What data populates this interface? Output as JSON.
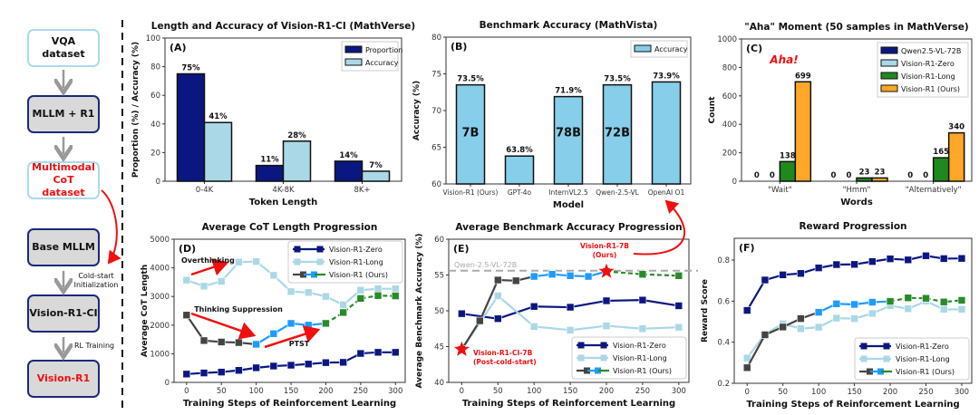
{
  "diagram": {
    "nodes": [
      "VQA dataset",
      "MLLM + R1",
      "Multimodal CoT dataset",
      "Base MLLM",
      "Vision-R1-CI",
      "Vision-R1"
    ],
    "step_cold_start": "Cold-start Initialization",
    "step_rl": "RL Training"
  },
  "chart_data": [
    {
      "id": "A",
      "type": "bar",
      "panel_label": "(A)",
      "title": "Length and Accuracy of Vision-R1-CI (MathVerse)",
      "xlabel": "Token Length",
      "ylabel": "Proportion (%) / Accuracy (%)",
      "ylim": [
        0,
        100
      ],
      "yticks": [
        0,
        20,
        40,
        60,
        80,
        100
      ],
      "categories": [
        "0-4K",
        "4K-8K",
        "8K+"
      ],
      "legend": "top-right",
      "series": [
        {
          "name": "Proportion",
          "color": "#0b1780",
          "values": [
            75,
            11,
            14
          ],
          "labels": [
            "75%",
            "11%",
            "14%"
          ]
        },
        {
          "name": "Accuracy",
          "color": "#aad8e6",
          "values": [
            41,
            28,
            7
          ],
          "labels": [
            "41%",
            "28%",
            "7%"
          ]
        }
      ]
    },
    {
      "id": "B",
      "type": "bar",
      "panel_label": "(B)",
      "title": "Benchmark Accuracy (MathVista)",
      "xlabel": "Model",
      "ylabel": "Accuracy (%)",
      "ylim": [
        60,
        80
      ],
      "yticks": [
        60,
        65,
        70,
        75,
        80
      ],
      "categories": [
        "Vision-R1 (Ours)",
        "GPT-4o",
        "InternVL2.5",
        "Qwen-2.5-VL",
        "OpenAI O1"
      ],
      "legend": "top-right",
      "series": [
        {
          "name": "Accuracy",
          "color": "#87ceeb",
          "values": [
            73.5,
            63.8,
            71.9,
            73.5,
            73.9
          ],
          "labels": [
            "73.5%",
            "63.8%",
            "71.9%",
            "73.5%",
            "73.9%"
          ]
        }
      ],
      "size_labels": [
        "7B",
        "",
        "78B",
        "72B",
        ""
      ]
    },
    {
      "id": "C",
      "type": "bar",
      "panel_label": "(C)",
      "title": "\"Aha\" Moment (50 samples in MathVerse)",
      "xlabel": "Words",
      "ylabel": "Count",
      "ylim": [
        0,
        1000
      ],
      "yticks": [
        0,
        200,
        400,
        600,
        800,
        1000
      ],
      "categories": [
        "\"Wait\"",
        "\"Hmm\"",
        "\"Alternatively\""
      ],
      "legend": "top-right",
      "annotation": "Aha!",
      "series": [
        {
          "name": "Qwen2.5-VL-72B",
          "color": "#0b1780",
          "values": [
            0,
            0,
            0
          ],
          "labels": [
            "0",
            "0",
            "0"
          ]
        },
        {
          "name": "Vision-R1-Zero",
          "color": "#aad8e6",
          "values": [
            0,
            0,
            0
          ],
          "labels": [
            "0",
            "0",
            "0"
          ]
        },
        {
          "name": "Vision-R1-Long",
          "color": "#1e8a1e",
          "values": [
            138,
            23,
            165
          ],
          "labels": [
            "138",
            "23",
            "165"
          ]
        },
        {
          "name": "Vision-R1 (Ours)",
          "color": "#ffa726",
          "values": [
            699,
            23,
            340
          ],
          "labels": [
            "699",
            "23",
            "340"
          ]
        }
      ]
    },
    {
      "id": "D",
      "type": "line",
      "panel_label": "(D)",
      "title": "Average CoT Length Progression",
      "xlabel": "Training Steps of Reinforcement Learning",
      "ylabel": "Average CoT Length",
      "ylim": [
        0,
        5000
      ],
      "yticks": [
        0,
        1000,
        2000,
        3000,
        4000,
        5000
      ],
      "xlim": [
        -18,
        314
      ],
      "xticks": [
        0,
        50,
        100,
        150,
        200,
        250,
        300
      ],
      "legend": "top-right",
      "annotations": [
        "Overthinking",
        "Thinking Suppression",
        "PTST"
      ],
      "series": [
        {
          "name": "Vision-R1-Zero",
          "segments": [
            {
              "color": "#0b1780",
              "dashed": false,
              "x": [
                0,
                25,
                50,
                75,
                100,
                125,
                150,
                175,
                200,
                225,
                250,
                275,
                300
              ],
              "y": [
                290,
                330,
                360,
                420,
                510,
                570,
                600,
                640,
                690,
                700,
                1010,
                1050,
                1050
              ]
            }
          ]
        },
        {
          "name": "Vision-R1-Long",
          "segments": [
            {
              "color": "#aad8e6",
              "dashed": false,
              "x": [
                0,
                25,
                50,
                75,
                100,
                125,
                150,
                175,
                200,
                225,
                250,
                275,
                300
              ],
              "y": [
                3570,
                3360,
                3530,
                4200,
                4220,
                3740,
                3170,
                3140,
                3000,
                2710,
                3220,
                3270,
                3270
              ]
            }
          ]
        },
        {
          "name": "Vision-R1 (Ours)",
          "segments": [
            {
              "color": "#444444",
              "dashed": false,
              "x": [
                0,
                25,
                50,
                75,
                100
              ],
              "y": [
                2350,
                1460,
                1410,
                1390,
                1330
              ]
            },
            {
              "color": "#1e9bff",
              "dashed": false,
              "x": [
                100,
                125,
                150,
                175,
                200
              ],
              "y": [
                1330,
                1700,
                2060,
                2000,
                2060
              ]
            },
            {
              "color": "#2a8a2a",
              "dashed": true,
              "x": [
                200,
                225,
                250,
                275,
                300
              ],
              "y": [
                2060,
                2440,
                2930,
                3030,
                3020
              ]
            }
          ]
        }
      ]
    },
    {
      "id": "E",
      "type": "line",
      "panel_label": "(E)",
      "title": "Average Benchmark Accuracy Progression",
      "xlabel": "Training Steps of Reinforcement Learning",
      "ylabel": "Average Benchmark Accuracy (%)",
      "ylim": [
        40,
        60
      ],
      "yticks": [
        40,
        45,
        50,
        55,
        60
      ],
      "xlim": [
        -18,
        314
      ],
      "xticks": [
        0,
        50,
        100,
        150,
        200,
        250,
        300
      ],
      "legend": "bottom-right",
      "reference_line": {
        "label": "Qwen-2.5-VL-72B",
        "value": 55.6
      },
      "annotations": [
        "Vision-R1-7B",
        "(Ours)",
        "Vision-R1-CI-7B",
        "(Post-cold-start)"
      ],
      "stars": [
        {
          "x": 0,
          "y": 44.6
        },
        {
          "x": 200,
          "y": 55.5
        }
      ],
      "series": [
        {
          "name": "Vision-R1-Zero",
          "segments": [
            {
              "color": "#0b1780",
              "dashed": false,
              "x": [
                0,
                50,
                100,
                150,
                200,
                250,
                300
              ],
              "y": [
                49.6,
                48.9,
                50.6,
                50.5,
                51.4,
                51.5,
                50.7
              ]
            }
          ]
        },
        {
          "name": "Vision-R1-Long",
          "segments": [
            {
              "color": "#aad8e6",
              "dashed": false,
              "x": [
                0,
                50,
                100,
                150,
                200,
                250,
                300
              ],
              "y": [
                44.6,
                52.1,
                47.8,
                47.3,
                47.9,
                47.5,
                47.7
              ]
            }
          ]
        },
        {
          "name": "Vision-R1 (Ours)",
          "segments": [
            {
              "color": "#444444",
              "dashed": false,
              "x": [
                0,
                25,
                50,
                75,
                100
              ],
              "y": [
                44.6,
                48.6,
                54.3,
                54.2,
                54.8
              ]
            },
            {
              "color": "#1e9bff",
              "dashed": false,
              "x": [
                100,
                125,
                150,
                175,
                200
              ],
              "y": [
                54.8,
                55.1,
                54.9,
                54.8,
                55.5
              ]
            },
            {
              "color": "#2a8a2a",
              "dashed": true,
              "x": [
                200,
                250,
                300
              ],
              "y": [
                55.5,
                55.1,
                54.9
              ]
            }
          ]
        }
      ]
    },
    {
      "id": "F",
      "type": "line",
      "panel_label": "(F)",
      "title": "Reward Progression",
      "xlabel": "Training Steps of Reinforcement Learning",
      "ylabel": "Reward Score",
      "ylim": [
        0.2,
        0.906
      ],
      "yticks": [
        0.2,
        0.4,
        0.6,
        0.8
      ],
      "xlim": [
        -18,
        314
      ],
      "xticks": [
        0,
        50,
        100,
        150,
        200,
        250,
        300
      ],
      "legend": "bottom-right",
      "series": [
        {
          "name": "Vision-R1-Zero",
          "segments": [
            {
              "color": "#0b1780",
              "dashed": false,
              "x": [
                0,
                25,
                50,
                75,
                100,
                125,
                150,
                175,
                200,
                225,
                250,
                275,
                300
              ],
              "y": [
                0.555,
                0.703,
                0.728,
                0.735,
                0.762,
                0.778,
                0.779,
                0.793,
                0.806,
                0.801,
                0.821,
                0.807,
                0.808
              ]
            }
          ]
        },
        {
          "name": "Vision-R1-Long",
          "segments": [
            {
              "color": "#aad8e6",
              "dashed": false,
              "x": [
                0,
                25,
                50,
                75,
                100,
                125,
                150,
                175,
                200,
                225,
                250,
                275,
                300
              ],
              "y": [
                0.323,
                0.44,
                0.49,
                0.466,
                0.473,
                0.517,
                0.515,
                0.54,
                0.578,
                0.563,
                0.6,
                0.56,
                0.56
              ]
            }
          ]
        },
        {
          "name": "Vision-R1 (Ours)",
          "segments": [
            {
              "color": "#444444",
              "dashed": false,
              "x": [
                0,
                25,
                50,
                75,
                100
              ],
              "y": [
                0.276,
                0.436,
                0.474,
                0.515,
                0.546
              ]
            },
            {
              "color": "#1e9bff",
              "dashed": false,
              "x": [
                100,
                125,
                150,
                175,
                200
              ],
              "y": [
                0.546,
                0.587,
                0.584,
                0.595,
                0.599
              ]
            },
            {
              "color": "#2a8a2a",
              "dashed": true,
              "x": [
                200,
                225,
                250,
                275,
                300
              ],
              "y": [
                0.599,
                0.616,
                0.614,
                0.596,
                0.604
              ]
            }
          ]
        }
      ]
    }
  ]
}
